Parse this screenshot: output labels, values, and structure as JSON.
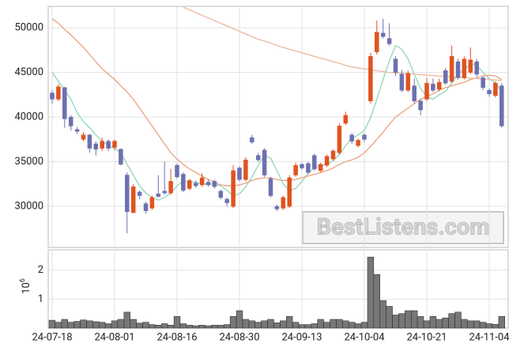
{
  "chart_data": {
    "type": "candlestick",
    "categories": [
      "24-07-18",
      null,
      null,
      null,
      null,
      null,
      null,
      null,
      null,
      null,
      "24-08-01",
      null,
      null,
      null,
      null,
      null,
      null,
      null,
      null,
      null,
      "24-08-16",
      null,
      null,
      null,
      null,
      null,
      null,
      null,
      null,
      null,
      "24-08-30",
      null,
      null,
      null,
      null,
      null,
      null,
      null,
      null,
      null,
      "24-09-13",
      null,
      null,
      null,
      null,
      null,
      null,
      null,
      null,
      null,
      "24-10-04",
      null,
      null,
      null,
      null,
      null,
      null,
      null,
      null,
      null,
      "24-10-21",
      null,
      null,
      null,
      null,
      null,
      null,
      null,
      null,
      null,
      "24-11-04",
      null,
      null
    ],
    "open": [
      42700,
      42000,
      43300,
      40000,
      38600,
      37500,
      38000,
      37000,
      36500,
      37300,
      36600,
      36400,
      33500,
      29300,
      31600,
      30300,
      29800,
      31400,
      31700,
      31500,
      34600,
      33600,
      32000,
      32600,
      32400,
      32700,
      32800,
      31700,
      30800,
      30000,
      34300,
      33000,
      37700,
      35700,
      36300,
      33100,
      30000,
      29800,
      30000,
      33500,
      34700,
      34800,
      35700,
      34000,
      34600,
      35300,
      36000,
      39300,
      38000,
      36800,
      38000,
      41800,
      47300,
      49400,
      48800,
      46500,
      44800,
      43000,
      43500,
      41800,
      42000,
      43700,
      43100,
      45200,
      44000,
      46200,
      44400,
      45000,
      46200,
      44400,
      43000,
      42400,
      43500
    ],
    "high": [
      43000,
      43700,
      43400,
      40200,
      38900,
      38300,
      38100,
      37300,
      37700,
      37500,
      37500,
      36500,
      33800,
      32500,
      31800,
      30500,
      31200,
      33500,
      35000,
      34200,
      34800,
      33800,
      33100,
      32900,
      33700,
      33000,
      33000,
      31900,
      31000,
      34600,
      34500,
      35500,
      38000,
      36000,
      36500,
      33300,
      30200,
      31200,
      33500,
      34900,
      34900,
      35000,
      35900,
      34900,
      35800,
      36400,
      39300,
      40600,
      38200,
      37600,
      38200,
      47200,
      50800,
      51000,
      50500,
      46800,
      45300,
      45200,
      44300,
      42000,
      44400,
      44300,
      44300,
      45500,
      48000,
      46500,
      46800,
      47800,
      46500,
      44600,
      43200,
      44000,
      43800
    ],
    "low": [
      41500,
      41800,
      38800,
      38500,
      38100,
      37300,
      36000,
      35700,
      36200,
      36200,
      36300,
      34600,
      27000,
      29200,
      30800,
      29200,
      29600,
      31000,
      31300,
      31300,
      33100,
      31600,
      31800,
      32100,
      32200,
      32200,
      32000,
      30800,
      30000,
      29800,
      32800,
      32800,
      37000,
      35000,
      33300,
      31000,
      29500,
      29600,
      29800,
      33300,
      34100,
      33600,
      34000,
      33800,
      34400,
      35100,
      35800,
      39100,
      37000,
      36600,
      37200,
      41500,
      47000,
      48800,
      48000,
      44600,
      42800,
      42800,
      41500,
      40200,
      41800,
      42800,
      42900,
      43600,
      43800,
      44200,
      44200,
      44800,
      44500,
      43000,
      42300,
      42200,
      38800
    ],
    "close": [
      42000,
      43400,
      39800,
      39000,
      38400,
      38000,
      36500,
      36400,
      37300,
      36500,
      37300,
      34700,
      29400,
      32200,
      31200,
      29500,
      31000,
      31100,
      31500,
      32800,
      33300,
      31800,
      32900,
      32300,
      33200,
      32400,
      32200,
      31000,
      30400,
      34000,
      33000,
      35200,
      37200,
      35200,
      33500,
      31200,
      29700,
      31000,
      33200,
      34600,
      34300,
      33800,
      34200,
      34700,
      35600,
      36200,
      39000,
      40200,
      37300,
      37400,
      37500,
      46800,
      49500,
      49000,
      48200,
      45000,
      43000,
      44900,
      41800,
      40800,
      43800,
      43000,
      43900,
      43800,
      46800,
      44400,
      46500,
      46400,
      44800,
      43300,
      42600,
      43800,
      39000
    ],
    "up_color": "#e0531f",
    "down_color": "#6d70b0",
    "lines": [
      {
        "color": "#8fd6b8",
        "values": [
          45000,
          44000,
          43000,
          42000,
          40500,
          39500,
          38800,
          38000,
          37300,
          36800,
          36500,
          36000,
          34700,
          33500,
          32300,
          31500,
          31000,
          30700,
          31000,
          31500,
          32300,
          32800,
          32700,
          32700,
          32500,
          32500,
          32500,
          32300,
          31800,
          31200,
          31400,
          32200,
          33300,
          34600,
          35700,
          35400,
          34000,
          32500,
          31800,
          32000,
          32800,
          33700,
          34300,
          34600,
          34700,
          35100,
          35800,
          36800,
          37600,
          38000,
          38500,
          39900,
          42000,
          44200,
          46300,
          48000,
          47600,
          46500,
          44800,
          43200,
          42300,
          42000,
          42500,
          42900,
          43800,
          44800,
          45300,
          46000,
          45800,
          45000,
          44300,
          43800,
          42800
        ]
      },
      {
        "color": "#eaa27e",
        "values": [
          51000,
          50500,
          49800,
          49200,
          48500,
          47800,
          47000,
          46200,
          45400,
          44800,
          44200,
          43500,
          42800,
          42000,
          41000,
          40000,
          39000,
          38000,
          37000,
          36000,
          35300,
          34700,
          34200,
          33800,
          33400,
          33000,
          32700,
          32400,
          32300,
          32300,
          32400,
          32600,
          32900,
          33100,
          33200,
          33200,
          33000,
          32900,
          32900,
          33000,
          33200,
          33400,
          33600,
          33800,
          34000,
          34300,
          34700,
          35000,
          35200,
          35500,
          36000,
          36700,
          37500,
          38300,
          39200,
          40000,
          40500,
          41000,
          41500,
          42000,
          42300,
          42600,
          43000,
          43300,
          43500,
          43700,
          43900,
          44200,
          44400,
          44600,
          44700,
          44600,
          44200
        ]
      },
      {
        "color": "#eab89e",
        "values": [
          null,
          null,
          null,
          null,
          null,
          null,
          null,
          null,
          null,
          null,
          null,
          null,
          null,
          null,
          null,
          null,
          null,
          null,
          null,
          null,
          null,
          52300,
          52000,
          51700,
          51400,
          51100,
          50800,
          50500,
          50200,
          49900,
          49600,
          49300,
          49000,
          48700,
          48500,
          48300,
          48000,
          47800,
          47600,
          47400,
          47200,
          47000,
          46800,
          46600,
          46400,
          46200,
          46000,
          45800,
          45600,
          45500,
          45400,
          45300,
          45200,
          45100,
          45000,
          44950,
          44900,
          44850,
          44800,
          44750,
          44700,
          44650,
          44600,
          44550,
          44500,
          44450,
          44400,
          44350,
          44300,
          44250,
          44200,
          44150,
          44100
        ]
      }
    ],
    "ylim": [
      25400,
      52400
    ],
    "yticks": [
      30000,
      35000,
      40000,
      45000,
      50000
    ],
    "volume": [
      0.27,
      0.2,
      0.3,
      0.2,
      0.23,
      0.28,
      0.25,
      0.22,
      0.2,
      0.15,
      0.25,
      0.3,
      0.55,
      0.3,
      0.17,
      0.2,
      0.12,
      0.1,
      0.15,
      0.1,
      0.4,
      0.15,
      0.1,
      0.08,
      0.1,
      0.08,
      0.1,
      0.1,
      0.12,
      0.4,
      0.6,
      0.3,
      0.25,
      0.2,
      0.25,
      0.3,
      0.18,
      0.25,
      0.4,
      0.2,
      0.12,
      0.12,
      0.15,
      0.3,
      0.2,
      0.3,
      0.3,
      0.25,
      0.2,
      0.15,
      0.2,
      2.45,
      1.85,
      0.95,
      0.75,
      0.45,
      0.5,
      0.6,
      0.6,
      0.4,
      0.25,
      0.4,
      0.3,
      0.35,
      0.5,
      0.55,
      0.3,
      0.25,
      0.25,
      0.2,
      0.15,
      0.13,
      0.4
    ],
    "volume_color": "#777777",
    "volume_ylim": [
      0,
      2.7
    ],
    "volume_yticks": [
      1,
      2
    ],
    "volume_scale_base": "10",
    "volume_scale_exponent": "6",
    "watermark": "BestListens.com",
    "grid": true
  }
}
